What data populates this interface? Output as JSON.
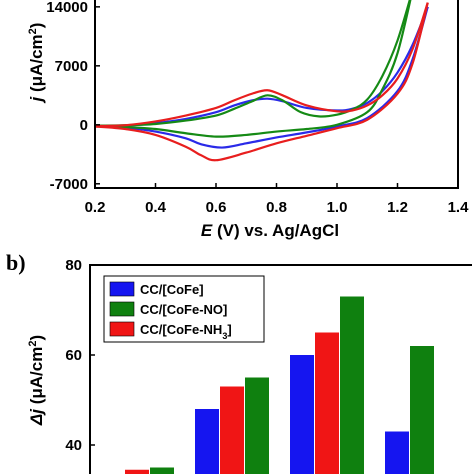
{
  "chart_data": [
    {
      "type": "line",
      "title": "",
      "xlabel": "E (V) vs. Ag/AgCl",
      "xlabel_parts": {
        "var": "E",
        "rest": " (V) vs. Ag/AgCl"
      },
      "ylabel": "j (μA/cm²)",
      "ylabel_parts": {
        "var": "j",
        "rest": " (μA/cm",
        "sup": "2",
        "close": ")"
      },
      "xlim": [
        0.2,
        1.4
      ],
      "ylim": [
        -7500,
        16000
      ],
      "xticks": [
        0.2,
        0.4,
        0.6,
        0.8,
        1.0,
        1.2,
        1.4
      ],
      "xtick_labels": [
        "0.2",
        "0.4",
        "0.6",
        "0.8",
        "1.0",
        "1.2",
        "1.4"
      ],
      "yticks": [
        -7000,
        0,
        7000,
        14000
      ],
      "ytick_labels": [
        "-7000",
        "0",
        "7000",
        "14000"
      ],
      "series": [
        {
          "color": "#2a2ae8",
          "forward": [
            [
              0.2,
              -150
            ],
            [
              0.3,
              -100
            ],
            [
              0.4,
              200
            ],
            [
              0.5,
              700
            ],
            [
              0.6,
              1500
            ],
            [
              0.66,
              2300
            ],
            [
              0.72,
              2900
            ],
            [
              0.77,
              3100
            ],
            [
              0.82,
              2800
            ],
            [
              0.9,
              2000
            ],
            [
              1.0,
              1700
            ],
            [
              1.05,
              1900
            ],
            [
              1.1,
              2600
            ],
            [
              1.15,
              4000
            ],
            [
              1.2,
              6200
            ],
            [
              1.25,
              9500
            ],
            [
              1.3,
              14000
            ]
          ],
          "reverse": [
            [
              1.3,
              14000
            ],
            [
              1.25,
              7800
            ],
            [
              1.2,
              4000
            ],
            [
              1.1,
              800
            ],
            [
              1.0,
              -200
            ],
            [
              0.9,
              -900
            ],
            [
              0.8,
              -1500
            ],
            [
              0.7,
              -2200
            ],
            [
              0.62,
              -2700
            ],
            [
              0.55,
              -2300
            ],
            [
              0.5,
              -1600
            ],
            [
              0.4,
              -800
            ],
            [
              0.3,
              -350
            ],
            [
              0.2,
              -150
            ]
          ]
        },
        {
          "color": "#158a15",
          "forward": [
            [
              0.2,
              -100
            ],
            [
              0.3,
              -50
            ],
            [
              0.4,
              100
            ],
            [
              0.5,
              500
            ],
            [
              0.6,
              1100
            ],
            [
              0.66,
              1900
            ],
            [
              0.72,
              2800
            ],
            [
              0.77,
              3500
            ],
            [
              0.82,
              2900
            ],
            [
              0.88,
              1500
            ],
            [
              0.94,
              1000
            ],
            [
              1.0,
              1200
            ],
            [
              1.05,
              1800
            ],
            [
              1.1,
              3000
            ],
            [
              1.15,
              5800
            ],
            [
              1.2,
              10000
            ],
            [
              1.25,
              16000
            ]
          ],
          "reverse": [
            [
              1.25,
              16000
            ],
            [
              1.2,
              8500
            ],
            [
              1.15,
              4200
            ],
            [
              1.1,
              1500
            ],
            [
              1.0,
              0
            ],
            [
              0.9,
              -500
            ],
            [
              0.8,
              -800
            ],
            [
              0.7,
              -1200
            ],
            [
              0.6,
              -1400
            ],
            [
              0.5,
              -1000
            ],
            [
              0.4,
              -500
            ],
            [
              0.3,
              -250
            ],
            [
              0.2,
              -100
            ]
          ]
        },
        {
          "color": "#e81e1e",
          "forward": [
            [
              0.2,
              -150
            ],
            [
              0.3,
              -50
            ],
            [
              0.4,
              400
            ],
            [
              0.5,
              1100
            ],
            [
              0.6,
              2000
            ],
            [
              0.66,
              2900
            ],
            [
              0.72,
              3700
            ],
            [
              0.77,
              4100
            ],
            [
              0.82,
              3500
            ],
            [
              0.9,
              2300
            ],
            [
              1.0,
              1600
            ],
            [
              1.05,
              1700
            ],
            [
              1.1,
              2300
            ],
            [
              1.15,
              3500
            ],
            [
              1.2,
              5500
            ],
            [
              1.25,
              9000
            ],
            [
              1.3,
              14500
            ]
          ],
          "reverse": [
            [
              1.3,
              14500
            ],
            [
              1.25,
              7300
            ],
            [
              1.2,
              3700
            ],
            [
              1.1,
              600
            ],
            [
              1.0,
              -400
            ],
            [
              0.9,
              -1300
            ],
            [
              0.8,
              -2200
            ],
            [
              0.7,
              -3300
            ],
            [
              0.6,
              -4200
            ],
            [
              0.55,
              -3600
            ],
            [
              0.5,
              -2600
            ],
            [
              0.4,
              -1200
            ],
            [
              0.3,
              -500
            ],
            [
              0.2,
              -200
            ]
          ]
        }
      ]
    },
    {
      "type": "bar",
      "title": "",
      "panel_label": "b)",
      "xlabel": "",
      "ylabel": "Δj (μA/cm²)",
      "ylabel_parts": {
        "var": "Δj",
        "rest": " (μA/cm",
        "sup": "2",
        "close": ")"
      },
      "ylim": [
        30,
        80
      ],
      "yticks": [
        40,
        60,
        80
      ],
      "ytick_labels": [
        "40",
        "60",
        "80"
      ],
      "legend_position": "top-left",
      "legend": [
        {
          "base": "CC/[CoFe]",
          "sub": "",
          "tail": "",
          "color": "#1515f0"
        },
        {
          "base": "CC/[CoFe-NO]",
          "sub": "",
          "tail": "",
          "color": "#0f800f"
        },
        {
          "base": "CC/[CoFe-NH",
          "sub": "3",
          "tail": "]",
          "color": "#f01515"
        }
      ],
      "groups": [
        {
          "bars": [
            {
              "value": 33.5,
              "color": "#1515f0"
            },
            {
              "value": 34.5,
              "color": "#f01515"
            },
            {
              "value": 35,
              "color": "#0f800f"
            }
          ]
        },
        {
          "bars": [
            {
              "value": 48,
              "color": "#1515f0"
            },
            {
              "value": 53,
              "color": "#f01515"
            },
            {
              "value": 55,
              "color": "#0f800f"
            }
          ]
        },
        {
          "bars": [
            {
              "value": 60,
              "color": "#1515f0"
            },
            {
              "value": 65,
              "color": "#f01515"
            },
            {
              "value": 73,
              "color": "#0f800f"
            }
          ]
        },
        {
          "bars": [
            {
              "value": 43,
              "color": "#1515f0"
            },
            {
              "value": 62,
              "color": "#0f800f"
            }
          ]
        }
      ]
    }
  ]
}
